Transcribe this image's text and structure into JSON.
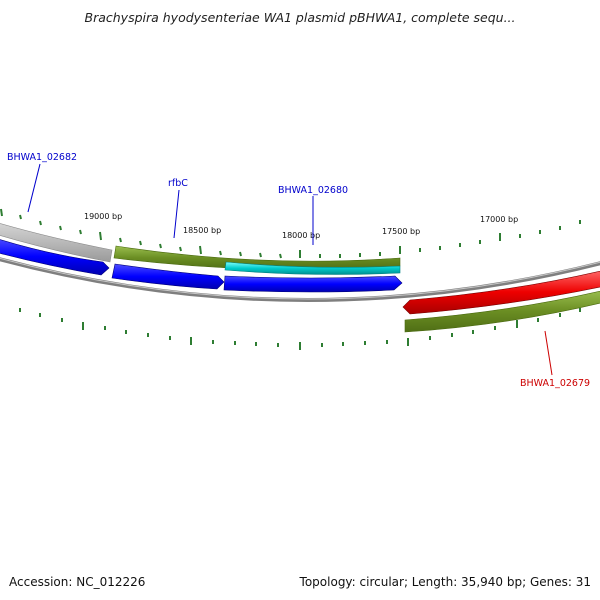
{
  "title": "Brachyspira hyodysenteriae WA1 plasmid pBHWA1, complete sequ...",
  "footer": {
    "accession": "Accession: NC_012226",
    "summary": "Topology: circular; Length: 35,940 bp; Genes: 31"
  },
  "scale_labels": [
    {
      "text": "19000 bp"
    },
    {
      "text": "18500 bp"
    },
    {
      "text": "18000 bp"
    },
    {
      "text": "17500 bp"
    },
    {
      "text": "17000 bp"
    }
  ],
  "gene_labels": [
    {
      "text": "BHWA1_02682",
      "color": "#0000cc"
    },
    {
      "text": "rfbC",
      "color": "#0000cc"
    },
    {
      "text": "BHWA1_02680",
      "color": "#0000cc"
    },
    {
      "text": "BHWA1_02679",
      "color": "#cc0000"
    }
  ],
  "colors": {
    "forward_gene": "#0000ff",
    "reverse_gene": "#ee0000",
    "cds_feature": "#6b8e23",
    "misc_feature": "#00cccc",
    "backbone": "#7f7f7f",
    "ticks": "#2e7d32"
  }
}
